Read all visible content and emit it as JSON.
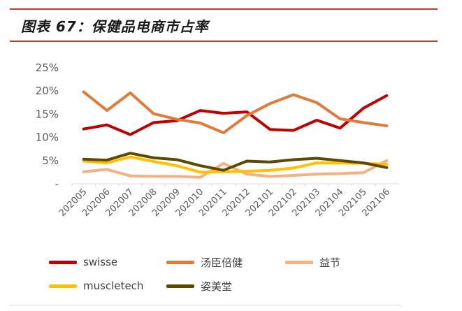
{
  "page": {
    "title": "图表 67：保健品电商市占率"
  },
  "chart_data": {
    "type": "line",
    "title": "图表 67：保健品电商市占率",
    "xlabel": "",
    "ylabel": "",
    "categories": [
      "202005",
      "202006",
      "202007",
      "202008",
      "202009",
      "202010",
      "202011",
      "202012",
      "202101",
      "202102",
      "202103",
      "202104",
      "202105",
      "202106"
    ],
    "ylim": [
      0,
      25
    ],
    "y_ticks": [
      {
        "value": 0,
        "label": "-"
      },
      {
        "value": 5,
        "label": "5%"
      },
      {
        "value": 10,
        "label": "10%"
      },
      {
        "value": 15,
        "label": "15%"
      },
      {
        "value": 20,
        "label": "20%"
      },
      {
        "value": 25,
        "label": "25%"
      }
    ],
    "grid": false,
    "legend_position": "bottom",
    "series": [
      {
        "name": "swisse",
        "color": "#c00000",
        "values": [
          11.8,
          12.7,
          10.6,
          13.2,
          13.6,
          15.8,
          15.2,
          15.5,
          11.7,
          11.5,
          13.7,
          12.0,
          16.3,
          19.0
        ]
      },
      {
        "name": "汤臣倍健",
        "color": "#e07b39",
        "values": [
          19.8,
          15.8,
          19.6,
          15.1,
          13.9,
          13.1,
          11.0,
          14.7,
          17.3,
          19.2,
          17.5,
          14.0,
          13.2,
          12.5
        ]
      },
      {
        "name": "益节",
        "color": "#f4b183",
        "values": [
          2.6,
          3.1,
          1.7,
          1.6,
          1.6,
          1.4,
          4.4,
          2.1,
          1.6,
          1.8,
          2.1,
          2.2,
          2.4,
          5.0
        ]
      },
      {
        "name": "muscletech",
        "color": "#ffc000",
        "values": [
          4.9,
          4.5,
          5.8,
          4.8,
          3.9,
          2.5,
          2.6,
          2.7,
          2.9,
          3.4,
          4.5,
          4.5,
          4.4,
          4.2
        ]
      },
      {
        "name": "姿美堂",
        "color": "#5b4a00",
        "values": [
          5.3,
          5.1,
          6.6,
          5.6,
          5.2,
          3.9,
          2.9,
          4.9,
          4.7,
          5.2,
          5.5,
          5.0,
          4.5,
          3.5
        ]
      }
    ]
  }
}
